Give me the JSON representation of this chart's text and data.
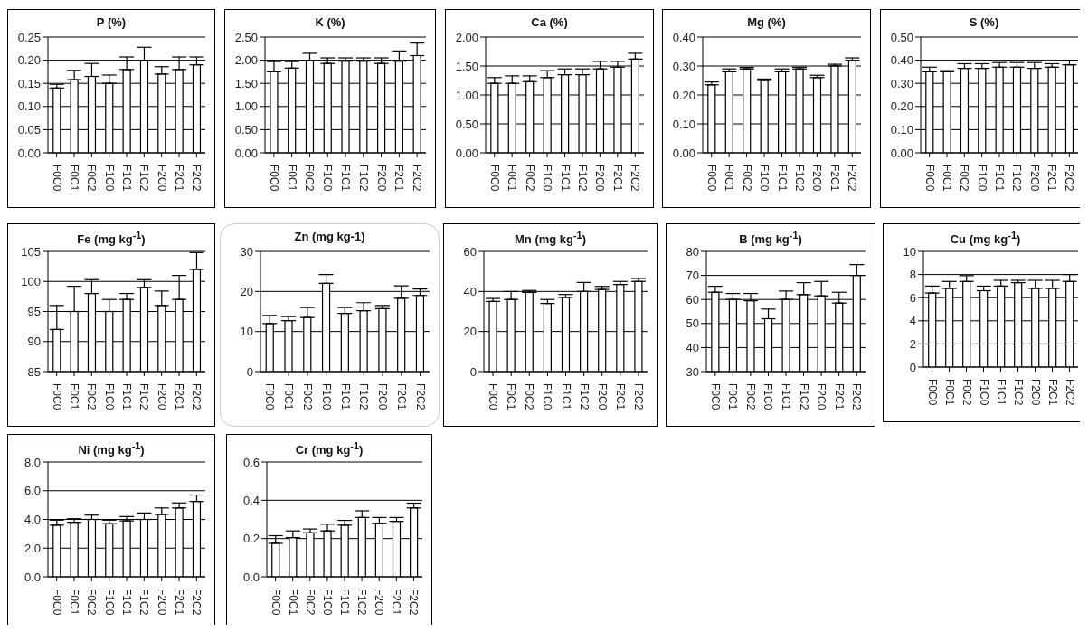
{
  "chart_data": [
    {
      "type": "bar",
      "title": "P (%)",
      "categories": [
        "F0C0",
        "F0C1",
        "F0C2",
        "F1C0",
        "F1C1",
        "F1C2",
        "F2C0",
        "F2C1",
        "F2C2"
      ],
      "color": "#ffffff",
      "values": [
        0.14,
        0.158,
        0.165,
        0.15,
        0.18,
        0.2,
        0.17,
        0.18,
        0.19
      ],
      "errors": [
        [
          0.14,
          0.148
        ],
        [
          0.158,
          0.178
        ],
        [
          0.165,
          0.193
        ],
        [
          0.15,
          0.168
        ],
        [
          0.18,
          0.207
        ],
        [
          0.2,
          0.228
        ],
        [
          0.17,
          0.186
        ],
        [
          0.18,
          0.207
        ],
        [
          0.19,
          0.207
        ]
      ],
      "ylim": [
        0,
        0.25
      ],
      "yticks": [
        {
          "value": 0,
          "label": "0.00"
        },
        {
          "value": 0.05,
          "label": "0.05"
        },
        {
          "value": 0.1,
          "label": "0.10"
        },
        {
          "value": 0.15,
          "label": "0.15"
        },
        {
          "value": 0.2,
          "label": "0.20"
        },
        {
          "value": 0.25,
          "label": "0.25"
        }
      ],
      "grid": "y"
    },
    {
      "type": "bar",
      "title": "K (%)",
      "categories": [
        "F0C0",
        "F0C1",
        "F0C2",
        "F1C0",
        "F1C1",
        "F1C2",
        "F2C0",
        "F2C1",
        "F2C2"
      ],
      "color": "#ffffff",
      "values": [
        1.75,
        1.83,
        2.0,
        1.93,
        1.98,
        1.98,
        1.93,
        1.98,
        2.1
      ],
      "errors": [
        [
          1.75,
          1.97
        ],
        [
          1.83,
          1.97
        ],
        [
          2.0,
          2.15
        ],
        [
          1.93,
          2.05
        ],
        [
          1.98,
          2.05
        ],
        [
          1.98,
          2.05
        ],
        [
          1.93,
          2.05
        ],
        [
          1.98,
          2.2
        ],
        [
          2.1,
          2.37
        ]
      ],
      "ylim": [
        0,
        2.5
      ],
      "yticks": [
        {
          "value": 0,
          "label": "0.00"
        },
        {
          "value": 0.5,
          "label": "0.50"
        },
        {
          "value": 1,
          "label": "1.00"
        },
        {
          "value": 1.5,
          "label": "1.50"
        },
        {
          "value": 2,
          "label": "2.00"
        },
        {
          "value": 2.5,
          "label": "2.50"
        }
      ],
      "grid": "y"
    },
    {
      "type": "bar",
      "title": "Ca (%)",
      "categories": [
        "F0C0",
        "F0C1",
        "F0C2",
        "F1C0",
        "F1C1",
        "F1C2",
        "F2C0",
        "F2C1",
        "F2C2"
      ],
      "color": "#ffffff",
      "values": [
        1.2,
        1.2,
        1.23,
        1.3,
        1.35,
        1.35,
        1.45,
        1.48,
        1.62
      ],
      "errors": [
        [
          1.2,
          1.3
        ],
        [
          1.2,
          1.33
        ],
        [
          1.23,
          1.33
        ],
        [
          1.3,
          1.42
        ],
        [
          1.35,
          1.45
        ],
        [
          1.35,
          1.45
        ],
        [
          1.45,
          1.58
        ],
        [
          1.48,
          1.58
        ],
        [
          1.62,
          1.72
        ]
      ],
      "ylim": [
        0,
        2
      ],
      "yticks": [
        {
          "value": 0,
          "label": "0.00"
        },
        {
          "value": 0.5,
          "label": "0.50"
        },
        {
          "value": 1,
          "label": "1.00"
        },
        {
          "value": 1.5,
          "label": "1.50"
        },
        {
          "value": 2,
          "label": "2.00"
        }
      ],
      "grid": "y"
    },
    {
      "type": "bar",
      "title": "Mg (%)",
      "categories": [
        "F0C0",
        "F0C1",
        "F0C2",
        "F1C0",
        "F1C1",
        "F1C2",
        "F2C0",
        "F2C1",
        "F2C2"
      ],
      "color": "#ffffff",
      "values": [
        0.235,
        0.28,
        0.29,
        0.25,
        0.28,
        0.29,
        0.26,
        0.3,
        0.32
      ],
      "errors": [
        [
          0.235,
          0.245
        ],
        [
          0.28,
          0.29
        ],
        [
          0.29,
          0.295
        ],
        [
          0.25,
          0.255
        ],
        [
          0.28,
          0.29
        ],
        [
          0.29,
          0.296
        ],
        [
          0.26,
          0.268
        ],
        [
          0.3,
          0.306
        ],
        [
          0.32,
          0.328
        ]
      ],
      "ylim": [
        0,
        0.4
      ],
      "yticks": [
        {
          "value": 0,
          "label": "0.00"
        },
        {
          "value": 0.1,
          "label": "0.10"
        },
        {
          "value": 0.2,
          "label": "0.20"
        },
        {
          "value": 0.3,
          "label": "0.30"
        },
        {
          "value": 0.4,
          "label": "0.40"
        }
      ],
      "grid": "y"
    },
    {
      "type": "bar",
      "title": "S (%)",
      "categories": [
        "F0C0",
        "F0C1",
        "F0C2",
        "F1C0",
        "F1C1",
        "F1C2",
        "F2C0",
        "F2C1",
        "F2C2"
      ],
      "color": "#ffffff",
      "values": [
        0.35,
        0.35,
        0.365,
        0.365,
        0.37,
        0.37,
        0.365,
        0.37,
        0.38
      ],
      "errors": [
        [
          0.35,
          0.37
        ],
        [
          0.35,
          0.355
        ],
        [
          0.365,
          0.385
        ],
        [
          0.365,
          0.385
        ],
        [
          0.37,
          0.39
        ],
        [
          0.37,
          0.39
        ],
        [
          0.365,
          0.39
        ],
        [
          0.37,
          0.385
        ],
        [
          0.38,
          0.4
        ]
      ],
      "ylim": [
        0,
        0.5
      ],
      "yticks": [
        {
          "value": 0,
          "label": "0.00"
        },
        {
          "value": 0.1,
          "label": "0.10"
        },
        {
          "value": 0.2,
          "label": "0.20"
        },
        {
          "value": 0.3,
          "label": "0.30"
        },
        {
          "value": 0.4,
          "label": "0.40"
        },
        {
          "value": 0.5,
          "label": "0.50"
        }
      ],
      "grid": "y"
    },
    {
      "type": "bar",
      "title": "Fe (mg kg$^{-1}$)",
      "categories": [
        "F0C0",
        "F0C1",
        "F0C2",
        "F1C0",
        "F1C1",
        "F1C2",
        "F2C0",
        "F2C1",
        "F2C2"
      ],
      "color": "#ffffff",
      "values": [
        92,
        95,
        98,
        95,
        97,
        99,
        96,
        97,
        102
      ],
      "errors": [
        [
          92,
          96
        ],
        [
          95,
          99.2
        ],
        [
          98,
          100.3
        ],
        [
          95,
          97
        ],
        [
          97,
          98
        ],
        [
          99,
          100.3
        ],
        [
          96,
          98.4
        ],
        [
          97,
          101
        ],
        [
          102,
          104.8
        ]
      ],
      "ylim": [
        85,
        105
      ],
      "yticks": [
        85,
        90,
        95,
        100,
        105
      ],
      "grid": "y"
    },
    {
      "type": "bar",
      "title": "Zn (mg kg-1)",
      "categories": [
        "F0C0",
        "F0C1",
        "F0C2",
        "F1C0",
        "F1C1",
        "F1C2",
        "F2C0",
        "F2C1",
        "F2C2"
      ],
      "color": "#ffffff",
      "values": [
        12,
        12.7,
        13.5,
        22,
        14.5,
        15.2,
        15.7,
        18.3,
        19
      ],
      "errors": [
        [
          12,
          14
        ],
        [
          12.7,
          13.7
        ],
        [
          13.5,
          16
        ],
        [
          22,
          24.2
        ],
        [
          14.5,
          16
        ],
        [
          15.2,
          17.2
        ],
        [
          15.7,
          16.5
        ],
        [
          18.3,
          21.4
        ],
        [
          19,
          20.6
        ]
      ],
      "ylim": [
        0,
        30
      ],
      "yticks": [
        0,
        10,
        20,
        30
      ],
      "grid": "y"
    },
    {
      "type": "bar",
      "title": "Mn (mg kg$^{-1}$)",
      "categories": [
        "F0C0",
        "F0C1",
        "F0C2",
        "F1C0",
        "F1C1",
        "F1C2",
        "F2C0",
        "F2C1",
        "F2C2"
      ],
      "color": "#ffffff",
      "values": [
        35,
        36,
        39.5,
        34,
        37,
        40,
        41,
        43.5,
        45
      ],
      "errors": [
        [
          35,
          36.5
        ],
        [
          36,
          40
        ],
        [
          39.5,
          40.5
        ],
        [
          34,
          36
        ],
        [
          37,
          38.5
        ],
        [
          40,
          44.5
        ],
        [
          41,
          42.5
        ],
        [
          43.5,
          45
        ],
        [
          45,
          46.5
        ]
      ],
      "ylim": [
        0,
        60
      ],
      "yticks": [
        0,
        20,
        40,
        60
      ],
      "grid": "y"
    },
    {
      "type": "bar",
      "title": "B (mg kg$^{-1}$)",
      "categories": [
        "F0C0",
        "F0C1",
        "F0C2",
        "F1C0",
        "F1C1",
        "F1C2",
        "F2C0",
        "F2C1",
        "F2C2"
      ],
      "color": "#ffffff",
      "values": [
        63,
        60,
        59.5,
        52,
        60,
        62,
        61.5,
        58.5,
        70
      ],
      "errors": [
        [
          63,
          65.5
        ],
        [
          60,
          62.5
        ],
        [
          59.5,
          62.5
        ],
        [
          52,
          56
        ],
        [
          60,
          63.5
        ],
        [
          62,
          67
        ],
        [
          61.5,
          67.5
        ],
        [
          58.5,
          63
        ],
        [
          70,
          74.5
        ]
      ],
      "ylim": [
        30,
        80
      ],
      "yticks": [
        30,
        40,
        50,
        60,
        70,
        80
      ],
      "grid": "y"
    },
    {
      "type": "bar",
      "title": "Cu (mg kg$^{-1}$)",
      "categories": [
        "F0C0",
        "F0C1",
        "F0C2",
        "F1C0",
        "F1C1",
        "F1C2",
        "F2C0",
        "F2C1",
        "F2C2"
      ],
      "color": "#ffffff",
      "values": [
        6.4,
        6.8,
        7.4,
        6.6,
        7.0,
        7.3,
        6.8,
        6.8,
        7.4
      ],
      "errors": [
        [
          6.4,
          7.0
        ],
        [
          6.8,
          7.4
        ],
        [
          7.4,
          7.9
        ],
        [
          6.6,
          7.0
        ],
        [
          7.0,
          7.5
        ],
        [
          7.3,
          7.5
        ],
        [
          6.8,
          7.5
        ],
        [
          6.8,
          7.5
        ],
        [
          7.4,
          8.0
        ]
      ],
      "ylim": [
        0,
        10
      ],
      "yticks": [
        0,
        2,
        4,
        6,
        8,
        10
      ],
      "grid": "y"
    },
    {
      "type": "bar",
      "title": "Ni (mg kg$^{-1}$)",
      "categories": [
        "F0C0",
        "F0C1",
        "F0C2",
        "F1C0",
        "F1C1",
        "F1C2",
        "F2C0",
        "F2C1",
        "F2C2"
      ],
      "color": "#ffffff",
      "values": [
        3.6,
        3.8,
        4.0,
        3.7,
        3.9,
        4.0,
        4.35,
        4.8,
        5.25
      ],
      "errors": [
        [
          3.6,
          3.95
        ],
        [
          3.8,
          4.05
        ],
        [
          4.0,
          4.3
        ],
        [
          3.7,
          3.95
        ],
        [
          3.9,
          4.2
        ],
        [
          4.0,
          4.45
        ],
        [
          4.35,
          4.8
        ],
        [
          4.8,
          5.15
        ],
        [
          5.25,
          5.7
        ]
      ],
      "ylim": [
        0,
        8
      ],
      "yticks": [
        {
          "value": 0,
          "label": "0.0"
        },
        {
          "value": 2,
          "label": "2.0"
        },
        {
          "value": 4,
          "label": "4.0"
        },
        {
          "value": 6,
          "label": "6.0"
        },
        {
          "value": 8,
          "label": "8.0"
        }
      ],
      "grid": "y"
    },
    {
      "type": "bar",
      "title": "Cr (mg kg$^{-1}$)",
      "categories": [
        "F0C0",
        "F0C1",
        "F0C2",
        "F1C0",
        "F1C1",
        "F1C2",
        "F2C0",
        "F2C1",
        "F2C2"
      ],
      "color": "#ffffff",
      "values": [
        0.175,
        0.205,
        0.23,
        0.24,
        0.27,
        0.31,
        0.28,
        0.29,
        0.36
      ],
      "errors": [
        [
          0.175,
          0.215
        ],
        [
          0.205,
          0.24
        ],
        [
          0.23,
          0.25
        ],
        [
          0.24,
          0.275
        ],
        [
          0.27,
          0.295
        ],
        [
          0.31,
          0.345
        ],
        [
          0.28,
          0.31
        ],
        [
          0.29,
          0.31
        ],
        [
          0.36,
          0.385
        ]
      ],
      "ylim": [
        0,
        0.6
      ],
      "yticks": [
        {
          "value": 0,
          "label": "0.0"
        },
        {
          "value": 0.2,
          "label": "0.2"
        },
        {
          "value": 0.4,
          "label": "0.4"
        },
        {
          "value": 0.6,
          "label": "0.6"
        }
      ],
      "grid": "y"
    }
  ]
}
